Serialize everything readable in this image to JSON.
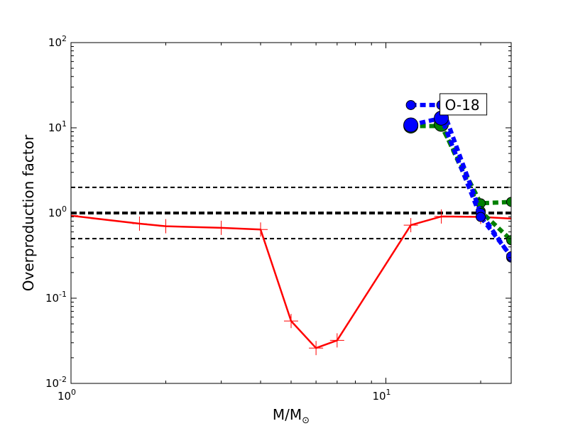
{
  "chart_data": {
    "type": "line",
    "xscale": "log",
    "yscale": "log",
    "xlim": [
      1,
      25
    ],
    "ylim": [
      0.01,
      100
    ],
    "xlabel": "M/M",
    "xlabel_subscript": "⊙",
    "ylabel": "Overproduction factor",
    "x_ticks": [
      {
        "value": 1,
        "base": "10",
        "exp": "0"
      },
      {
        "value": 10,
        "base": "10",
        "exp": "1"
      }
    ],
    "y_ticks": [
      {
        "value": 0.01,
        "base": "10",
        "exp": "-2"
      },
      {
        "value": 0.1,
        "base": "10",
        "exp": "-1"
      },
      {
        "value": 1,
        "base": "10",
        "exp": "0"
      },
      {
        "value": 10,
        "base": "10",
        "exp": "1"
      },
      {
        "value": 100,
        "base": "10",
        "exp": "2"
      }
    ],
    "reference_lines": [
      {
        "y": 2.0,
        "style": "dashed",
        "weight": "thin",
        "color": "#000000"
      },
      {
        "y": 1.0,
        "style": "dashed",
        "weight": "thick",
        "color": "#000000"
      },
      {
        "y": 0.5,
        "style": "dashed",
        "weight": "thin",
        "color": "#000000"
      }
    ],
    "annotation": {
      "text": "O-18",
      "x": 15.0,
      "y": 18.5
    },
    "series": [
      {
        "color": "#ff0000",
        "style": "solid",
        "marker": "plus",
        "points": [
          [
            1,
            0.93
          ],
          [
            1.65,
            0.75
          ],
          [
            2,
            0.7
          ],
          [
            3,
            0.67
          ],
          [
            4,
            0.64
          ],
          [
            5,
            0.054
          ],
          [
            6,
            0.026
          ],
          [
            7,
            0.032
          ],
          [
            12,
            0.72
          ],
          [
            15,
            0.91
          ],
          [
            20,
            0.9
          ],
          [
            25,
            0.86
          ]
        ]
      },
      {
        "color": "#008000",
        "style": "dotted",
        "marker": "circle",
        "points": [
          [
            12,
            10.5
          ],
          [
            15,
            10.5
          ],
          [
            20,
            1.3
          ],
          [
            25,
            1.35
          ]
        ]
      },
      {
        "color": "#008000",
        "style": "dotted",
        "marker": "circle",
        "points": [
          [
            15,
            11.0
          ],
          [
            20,
            1.05
          ],
          [
            25,
            0.48
          ]
        ]
      },
      {
        "color": "#0000ff",
        "style": "dotted",
        "marker": "circle",
        "points": [
          [
            12,
            18.5
          ],
          [
            15,
            18.5
          ],
          [
            20,
            1.0
          ],
          [
            25,
            0.3
          ]
        ]
      },
      {
        "color": "#0000ff",
        "style": "dotted",
        "marker": "circle",
        "points": [
          [
            12,
            10.8
          ],
          [
            15,
            13.0
          ],
          [
            20,
            0.9
          ],
          [
            25,
            0.31
          ]
        ]
      }
    ]
  }
}
